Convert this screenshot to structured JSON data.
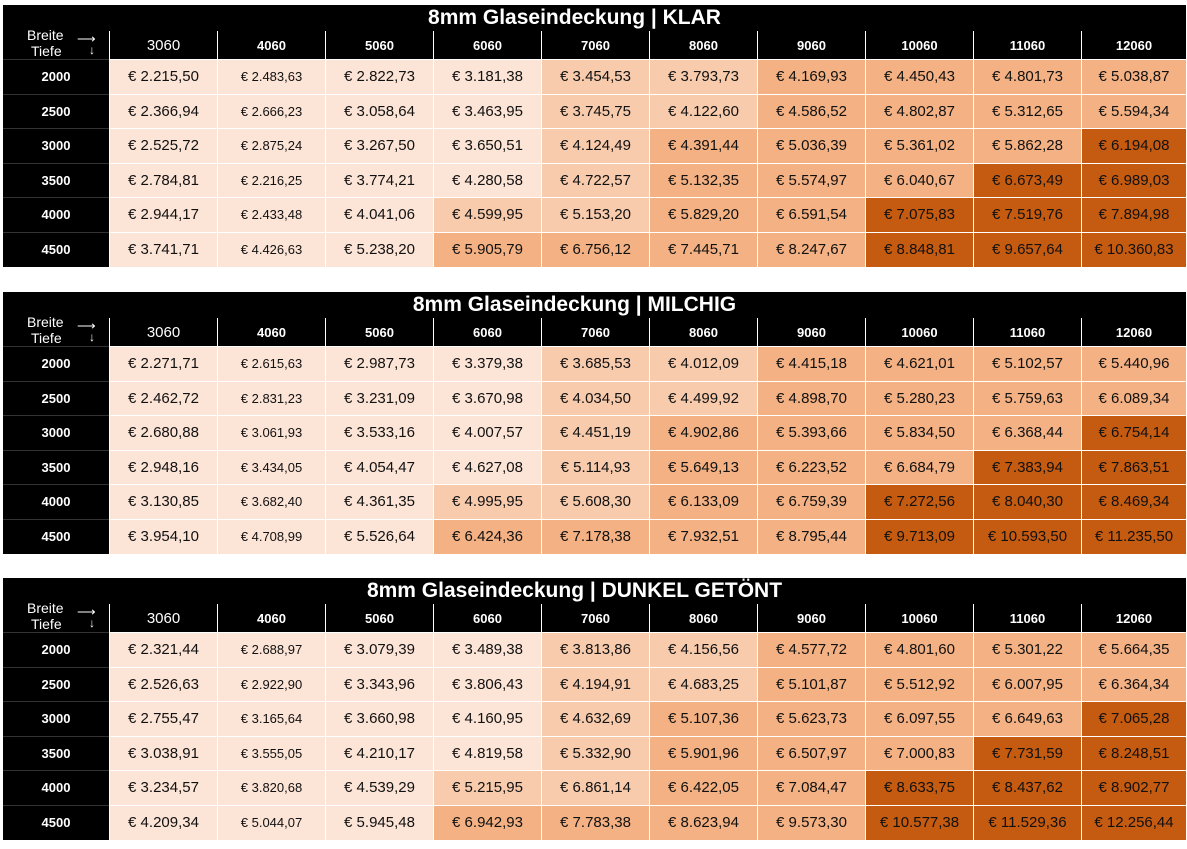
{
  "corner": {
    "breite": "Breite",
    "tiefe": "Tiefe"
  },
  "columns": [
    "3060",
    "4060",
    "5060",
    "6060",
    "7060",
    "8060",
    "9060",
    "10060",
    "11060",
    "12060"
  ],
  "rows": [
    "2000",
    "2500",
    "3000",
    "3500",
    "4000",
    "4500"
  ],
  "colors": {
    "header": "#000000",
    "tier0": "#fce4d6",
    "tier1": "#f8cbad",
    "tier2": "#f4b183",
    "tier3": "#c55a11"
  },
  "tables": [
    {
      "title": "8mm Glaseindeckung | KLAR",
      "cells": [
        [
          "€ 2.215,50",
          "€ 2.483,63",
          "€ 2.822,73",
          "€ 3.181,38",
          "€ 3.454,53",
          "€ 3.793,73",
          "€ 4.169,93",
          "€ 4.450,43",
          "€ 4.801,73",
          "€ 5.038,87"
        ],
        [
          "€ 2.366,94",
          "€ 2.666,23",
          "€ 3.058,64",
          "€ 3.463,95",
          "€ 3.745,75",
          "€ 4.122,60",
          "€ 4.586,52",
          "€ 4.802,87",
          "€ 5.312,65",
          "€ 5.594,34"
        ],
        [
          "€ 2.525,72",
          "€ 2.875,24",
          "€ 3.267,50",
          "€ 3.650,51",
          "€ 4.124,49",
          "€ 4.391,44",
          "€ 5.036,39",
          "€ 5.361,02",
          "€ 5.862,28",
          "€ 6.194,08"
        ],
        [
          "€ 2.784,81",
          "€ 2.216,25",
          "€ 3.774,21",
          "€ 4.280,58",
          "€ 4.722,57",
          "€ 5.132,35",
          "€ 5.574,97",
          "€ 6.040,67",
          "€ 6.673,49",
          "€ 6.989,03"
        ],
        [
          "€ 2.944,17",
          "€ 2.433,48",
          "€ 4.041,06",
          "€ 4.599,95",
          "€ 5.153,20",
          "€ 5.829,20",
          "€ 6.591,54",
          "€ 7.075,83",
          "€ 7.519,76",
          "€ 7.894,98"
        ],
        [
          "€ 3.741,71",
          "€ 4.426,63",
          "€ 5.238,20",
          "€ 5.905,79",
          "€ 6.756,12",
          "€ 7.445,71",
          "€ 8.247,67",
          "€ 8.848,81",
          "€ 9.657,64",
          "€ 10.360,83"
        ]
      ]
    },
    {
      "title": "8mm Glaseindeckung | MILCHIG",
      "cells": [
        [
          "€ 2.271,71",
          "€ 2.615,63",
          "€ 2.987,73",
          "€ 3.379,38",
          "€ 3.685,53",
          "€ 4.012,09",
          "€ 4.415,18",
          "€ 4.621,01",
          "€ 5.102,57",
          "€ 5.440,96"
        ],
        [
          "€ 2.462,72",
          "€ 2.831,23",
          "€ 3.231,09",
          "€ 3.670,98",
          "€ 4.034,50",
          "€ 4.499,92",
          "€ 4.898,70",
          "€ 5.280,23",
          "€ 5.759,63",
          "€ 6.089,34"
        ],
        [
          "€ 2.680,88",
          "€ 3.061,93",
          "€ 3.533,16",
          "€ 4.007,57",
          "€ 4.451,19",
          "€ 4.902,86",
          "€ 5.393,66",
          "€ 5.834,50",
          "€ 6.368,44",
          "€ 6.754,14"
        ],
        [
          "€ 2.948,16",
          "€ 3.434,05",
          "€ 4.054,47",
          "€ 4.627,08",
          "€ 5.114,93",
          "€ 5.649,13",
          "€ 6.223,52",
          "€ 6.684,79",
          "€ 7.383,94",
          "€ 7.863,51"
        ],
        [
          "€ 3.130,85",
          "€ 3.682,40",
          "€ 4.361,35",
          "€ 4.995,95",
          "€ 5.608,30",
          "€ 6.133,09",
          "€ 6.759,39",
          "€ 7.272,56",
          "€ 8.040,30",
          "€ 8.469,34"
        ],
        [
          "€ 3.954,10",
          "€ 4.708,99",
          "€ 5.526,64",
          "€ 6.424,36",
          "€ 7.178,38",
          "€ 7.932,51",
          "€ 8.795,44",
          "€ 9.713,09",
          "€ 10.593,50",
          "€ 11.235,50"
        ]
      ]
    },
    {
      "title": "8mm Glaseindeckung | DUNKEL GETÖNT",
      "cells": [
        [
          "€ 2.321,44",
          "€ 2.688,97",
          "€ 3.079,39",
          "€ 3.489,38",
          "€ 3.813,86",
          "€ 4.156,56",
          "€ 4.577,72",
          "€ 4.801,60",
          "€ 5.301,22",
          "€ 5.664,35"
        ],
        [
          "€ 2.526,63",
          "€ 2.922,90",
          "€ 3.343,96",
          "€ 3.806,43",
          "€ 4.194,91",
          "€ 4.683,25",
          "€ 5.101,87",
          "€ 5.512,92",
          "€ 6.007,95",
          "€ 6.364,34"
        ],
        [
          "€ 2.755,47",
          "€ 3.165,64",
          "€ 3.660,98",
          "€ 4.160,95",
          "€ 4.632,69",
          "€ 5.107,36",
          "€ 5.623,73",
          "€ 6.097,55",
          "€ 6.649,63",
          "€ 7.065,28"
        ],
        [
          "€ 3.038,91",
          "€ 3.555,05",
          "€ 4.210,17",
          "€ 4.819,58",
          "€ 5.332,90",
          "€ 5.901,96",
          "€ 6.507,97",
          "€ 7.000,83",
          "€ 7.731,59",
          "€ 8.248,51"
        ],
        [
          "€ 3.234,57",
          "€ 3.820,68",
          "€ 4.539,29",
          "€ 5.215,95",
          "€ 6.861,14",
          "€ 6.422,05",
          "€ 7.084,47",
          "€ 8.633,75",
          "€ 8.437,62",
          "€ 8.902,77"
        ],
        [
          "€ 4.209,34",
          "€ 5.044,07",
          "€ 5.945,48",
          "€ 6.942,93",
          "€ 7.783,38",
          "€ 8.623,94",
          "€ 9.573,30",
          "€ 10.577,38",
          "€ 11.529,36",
          "€ 12.256,44"
        ]
      ]
    }
  ]
}
